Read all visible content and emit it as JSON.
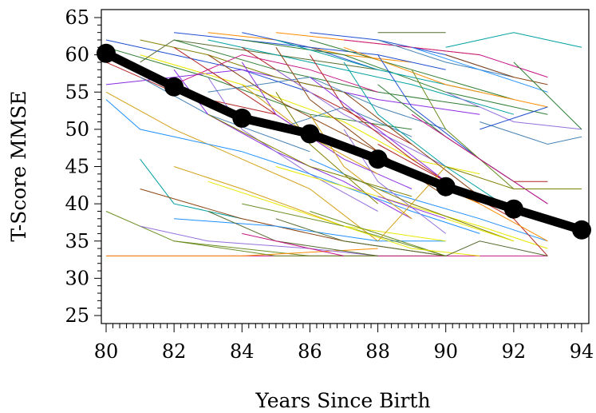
{
  "chart_data": {
    "type": "line",
    "xlabel": "Years Since Birth",
    "ylabel": "T-Score MMSE",
    "xlim": [
      80,
      94
    ],
    "ylim": [
      25,
      65
    ],
    "x_ticks": [
      80,
      82,
      84,
      86,
      88,
      90,
      92,
      94
    ],
    "y_ticks": [
      25,
      30,
      35,
      40,
      45,
      50,
      55,
      60,
      65
    ],
    "x_minor_step": 0.2,
    "y_minor_step": 1,
    "grid": false,
    "legend": "none",
    "mean_series": {
      "x": [
        80,
        82,
        84,
        86,
        88,
        90,
        92,
        94
      ],
      "y": [
        60.2,
        55.7,
        51.5,
        49.4,
        46.0,
        42.3,
        39.3,
        36.5
      ],
      "color": "#000000"
    },
    "spaghetti_palette": [
      "#1f4fd1",
      "#2e7d32",
      "#b22222",
      "#8a2be2",
      "#d4a017",
      "#1e90ff",
      "#6b8e23",
      "#c71585",
      "#ff8c00",
      "#00a0a0",
      "#8b4513",
      "#9370db",
      "#808000",
      "#e8e800",
      "#556b2f",
      "#4682b4"
    ],
    "spaghetti_series": [
      {
        "x": [
          80,
          82,
          84,
          86
        ],
        "y": [
          62,
          60,
          58,
          55
        ]
      },
      {
        "x": [
          80,
          83,
          86,
          89
        ],
        "y": [
          61,
          57,
          52,
          50
        ]
      },
      {
        "x": [
          80,
          82,
          85
        ],
        "y": [
          59,
          55,
          52
        ]
      },
      {
        "x": [
          80,
          84,
          88,
          91
        ],
        "y": [
          56,
          58,
          54,
          52
        ]
      },
      {
        "x": [
          80,
          82,
          84,
          86,
          88
        ],
        "y": [
          55,
          50,
          46,
          42,
          35
        ]
      },
      {
        "x": [
          80,
          81,
          84
        ],
        "y": [
          54,
          50,
          47
        ]
      },
      {
        "x": [
          80,
          82,
          86,
          90
        ],
        "y": [
          39,
          35,
          33,
          33
        ]
      },
      {
        "x": [
          80,
          85,
          90,
          93
        ],
        "y": [
          33,
          33,
          33,
          33
        ]
      },
      {
        "x": [
          80,
          84,
          88
        ],
        "y": [
          33,
          33,
          34
        ]
      },
      {
        "x": [
          81,
          82,
          84
        ],
        "y": [
          46,
          40,
          38
        ]
      },
      {
        "x": [
          81,
          84,
          87,
          90
        ],
        "y": [
          42,
          38,
          35,
          33
        ]
      },
      {
        "x": [
          81,
          83,
          86,
          88
        ],
        "y": [
          37,
          35,
          34,
          33
        ]
      },
      {
        "x": [
          81,
          83,
          85,
          87
        ],
        "y": [
          62,
          60,
          57,
          55
        ]
      },
      {
        "x": [
          81,
          84,
          87,
          89,
          91
        ],
        "y": [
          60,
          56,
          51,
          46,
          44
        ]
      },
      {
        "x": [
          81,
          82,
          85,
          88
        ],
        "y": [
          59,
          62,
          60,
          58
        ]
      },
      {
        "x": [
          81,
          83,
          86
        ],
        "y": [
          57,
          52,
          47
        ]
      },
      {
        "x": [
          82,
          84,
          86,
          88
        ],
        "y": [
          63,
          62,
          61,
          58
        ]
      },
      {
        "x": [
          82,
          85,
          88,
          91
        ],
        "y": [
          62,
          58,
          55,
          53
        ]
      },
      {
        "x": [
          82,
          84,
          86
        ],
        "y": [
          61,
          55,
          49
        ]
      },
      {
        "x": [
          82,
          83,
          85,
          87,
          89
        ],
        "y": [
          58,
          52,
          47,
          43,
          38
        ]
      },
      {
        "x": [
          82,
          84,
          87
        ],
        "y": [
          45,
          42,
          37
        ]
      },
      {
        "x": [
          82,
          85,
          88,
          90
        ],
        "y": [
          38,
          37,
          35,
          35
        ]
      },
      {
        "x": [
          82,
          85,
          88
        ],
        "y": [
          35,
          33,
          33
        ]
      },
      {
        "x": [
          82,
          84,
          86,
          88
        ],
        "y": [
          56,
          60,
          58,
          55
        ]
      },
      {
        "x": [
          83,
          85,
          87,
          89
        ],
        "y": [
          63,
          62,
          60,
          59
        ]
      },
      {
        "x": [
          83,
          86,
          89,
          92
        ],
        "y": [
          62,
          59,
          56,
          52
        ]
      },
      {
        "x": [
          83,
          85,
          88
        ],
        "y": [
          60,
          54,
          47
        ]
      },
      {
        "x": [
          83,
          84,
          86,
          88
        ],
        "y": [
          57,
          50,
          44,
          39
        ]
      },
      {
        "x": [
          83,
          86,
          89
        ],
        "y": [
          52,
          45,
          41
        ]
      },
      {
        "x": [
          83,
          85,
          87,
          90
        ],
        "y": [
          43,
          40,
          37,
          35
        ]
      },
      {
        "x": [
          83,
          85,
          88
        ],
        "y": [
          39,
          35,
          33
        ]
      },
      {
        "x": [
          83,
          86,
          88,
          90
        ],
        "y": [
          55,
          57,
          53,
          50
        ]
      },
      {
        "x": [
          84,
          86,
          88,
          90
        ],
        "y": [
          63,
          61,
          60,
          58
        ]
      },
      {
        "x": [
          84,
          87,
          90,
          93
        ],
        "y": [
          62,
          60,
          55,
          52
        ]
      },
      {
        "x": [
          84,
          86,
          89
        ],
        "y": [
          61,
          55,
          48
        ]
      },
      {
        "x": [
          84,
          85,
          87,
          89
        ],
        "y": [
          59,
          52,
          46,
          42
        ]
      },
      {
        "x": [
          84,
          86,
          88
        ],
        "y": [
          56,
          49,
          44
        ]
      },
      {
        "x": [
          84,
          86,
          89,
          91
        ],
        "y": [
          47,
          44,
          39,
          36
        ]
      },
      {
        "x": [
          84,
          87,
          90
        ],
        "y": [
          40,
          37,
          33
        ]
      },
      {
        "x": [
          84,
          85,
          87
        ],
        "y": [
          36,
          35,
          33
        ]
      },
      {
        "x": [
          85,
          87,
          89,
          91
        ],
        "y": [
          63,
          62,
          61,
          60
        ]
      },
      {
        "x": [
          85,
          88,
          91
        ],
        "y": [
          62,
          58,
          55
        ]
      },
      {
        "x": [
          85,
          86,
          88,
          90
        ],
        "y": [
          61,
          54,
          47,
          41
        ]
      },
      {
        "x": [
          85,
          87,
          90
        ],
        "y": [
          58,
          52,
          45
        ]
      },
      {
        "x": [
          85,
          86,
          88
        ],
        "y": [
          55,
          48,
          40
        ]
      },
      {
        "x": [
          85,
          88,
          91,
          93
        ],
        "y": [
          45,
          41,
          37,
          34
        ]
      },
      {
        "x": [
          85,
          87,
          90
        ],
        "y": [
          38,
          35,
          33
        ]
      },
      {
        "x": [
          85,
          87,
          89
        ],
        "y": [
          50,
          53,
          49
        ]
      },
      {
        "x": [
          86,
          88,
          90,
          92
        ],
        "y": [
          63,
          62,
          60,
          57
        ]
      },
      {
        "x": [
          86,
          89,
          92
        ],
        "y": [
          62,
          58,
          54
        ]
      },
      {
        "x": [
          86,
          87,
          89,
          91
        ],
        "y": [
          60,
          53,
          46,
          40
        ]
      },
      {
        "x": [
          86,
          88,
          90
        ],
        "y": [
          57,
          50,
          43
        ]
      },
      {
        "x": [
          86,
          87,
          89
        ],
        "y": [
          52,
          45,
          38
        ]
      },
      {
        "x": [
          86,
          88,
          91,
          93
        ],
        "y": [
          46,
          42,
          38,
          35
        ]
      },
      {
        "x": [
          86,
          88,
          90
        ],
        "y": [
          39,
          36,
          33
        ]
      },
      {
        "x": [
          87,
          89,
          91,
          93
        ],
        "y": [
          62,
          61,
          60,
          57
        ]
      },
      {
        "x": [
          87,
          90,
          93
        ],
        "y": [
          61,
          56,
          53
        ]
      },
      {
        "x": [
          87,
          88,
          90,
          92
        ],
        "y": [
          59,
          52,
          45,
          39
        ]
      },
      {
        "x": [
          87,
          89,
          91
        ],
        "y": [
          55,
          48,
          41
        ]
      },
      {
        "x": [
          87,
          88,
          90
        ],
        "y": [
          50,
          43,
          36
        ]
      },
      {
        "x": [
          87,
          89,
          92
        ],
        "y": [
          44,
          40,
          35
        ]
      },
      {
        "x": [
          87,
          89,
          91
        ],
        "y": [
          37,
          34,
          33
        ]
      },
      {
        "x": [
          88,
          90
        ],
        "y": [
          63,
          63
        ]
      },
      {
        "x": [
          88,
          90,
          92
        ],
        "y": [
          62,
          59,
          57
        ]
      },
      {
        "x": [
          88,
          89,
          91,
          93
        ],
        "y": [
          60,
          53,
          46,
          40
        ]
      },
      {
        "x": [
          88,
          90,
          92
        ],
        "y": [
          56,
          49,
          43
        ]
      },
      {
        "x": [
          88,
          90,
          92,
          93
        ],
        "y": [
          48,
          43,
          38,
          33
        ]
      },
      {
        "x": [
          88,
          90
        ],
        "y": [
          41,
          38
        ]
      },
      {
        "x": [
          88,
          89,
          90
        ],
        "y": [
          35,
          40,
          45
        ]
      },
      {
        "x": [
          89,
          91,
          93
        ],
        "y": [
          61,
          58,
          55
        ]
      },
      {
        "x": [
          89,
          90,
          92
        ],
        "y": [
          58,
          50,
          42
        ]
      },
      {
        "x": [
          89,
          91,
          93
        ],
        "y": [
          52,
          46,
          40
        ]
      },
      {
        "x": [
          89,
          91,
          93
        ],
        "y": [
          44,
          40,
          35
        ]
      },
      {
        "x": [
          90,
          92,
          94
        ],
        "y": [
          61,
          63,
          61
        ]
      },
      {
        "x": [
          90,
          92,
          93
        ],
        "y": [
          60,
          57,
          56
        ]
      },
      {
        "x": [
          90,
          92,
          94
        ],
        "y": [
          55,
          51,
          50
        ]
      },
      {
        "x": [
          90,
          92,
          94
        ],
        "y": [
          45,
          42,
          42
        ]
      },
      {
        "x": [
          90,
          92
        ],
        "y": [
          38,
          35
        ]
      },
      {
        "x": [
          90,
          91,
          93
        ],
        "y": [
          33,
          35,
          33
        ]
      },
      {
        "x": [
          91,
          93,
          94
        ],
        "y": [
          51,
          48,
          49
        ]
      },
      {
        "x": [
          91,
          93
        ],
        "y": [
          50,
          53
        ]
      },
      {
        "x": [
          92,
          94
        ],
        "y": [
          59,
          50
        ]
      },
      {
        "x": [
          92,
          93
        ],
        "y": [
          43,
          43
        ]
      }
    ]
  }
}
